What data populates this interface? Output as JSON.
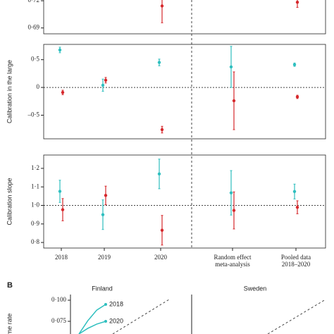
{
  "chart_data": [
    {
      "type": "errorbar",
      "categories": [
        "2018",
        "2019",
        "2020",
        "Random effect meta-analysis",
        "Pooled data 2018–2020"
      ],
      "ylim": [
        0.6835,
        0.7224
      ],
      "yticks": [
        {
          "value": 0.72,
          "label": "0·72"
        },
        {
          "value": 0.69,
          "label": "0·69"
        }
      ],
      "series": [
        {
          "color": "#d6282c",
          "values": [
            null,
            null,
            0.7143,
            null,
            0.7184
          ],
          "errors": [
            null,
            null,
            0.0186,
            null,
            0.0057
          ]
        }
      ]
    },
    {
      "type": "errorbar",
      "ylabel": "Calibration in the large",
      "ylim": [
        -0.925,
        0.775
      ],
      "refline": 0,
      "yticks": [
        {
          "value": 0.5,
          "label": "0·5"
        },
        0,
        {
          "value": -0.5,
          "label": "–0·5"
        }
      ],
      "series": [
        {
          "color": "#2fbfbf",
          "values": [
            0.675,
            0.04,
            0.45,
            0.37,
            0.41
          ],
          "errors": [
            0.05,
            0.11,
            0.06,
            0.37,
            0.03
          ]
        },
        {
          "color": "#d6282c",
          "values": [
            -0.09,
            0.13,
            -0.76,
            -0.24,
            -0.17
          ],
          "errors": [
            0.04,
            0.05,
            0.06,
            0.52,
            0.03
          ]
        }
      ]
    },
    {
      "type": "errorbar",
      "ylabel": "Calibration slope",
      "ylim": [
        0.77,
        1.272
      ],
      "refline": 1,
      "yticks": [
        {
          "value": 1.2,
          "label": "1·2"
        },
        {
          "value": 1.1,
          "label": "1·1"
        },
        {
          "value": 1.0,
          "label": "1·0"
        },
        {
          "value": 0.9,
          "label": "0·9"
        },
        {
          "value": 0.8,
          "label": "0·8"
        }
      ],
      "series": [
        {
          "color": "#2fbfbf",
          "values": [
            1.076,
            0.95,
            1.17,
            1.068,
            1.075
          ],
          "errors": [
            0.06,
            0.08,
            0.08,
            0.12,
            0.04
          ]
        },
        {
          "color": "#d6282c",
          "values": [
            0.977,
            1.054,
            0.866,
            0.973,
            0.99
          ],
          "errors": [
            0.06,
            0.05,
            0.08,
            0.1,
            0.035
          ]
        }
      ]
    },
    {
      "type": "line",
      "panel": "B",
      "ylabel": "me rate",
      "titles": [
        "Finland",
        "Sweden"
      ],
      "ylim": [
        0.06,
        0.1067
      ],
      "yticks": [
        {
          "value": 0.1,
          "label": "0·100"
        },
        {
          "value": 0.075,
          "label": "0·075"
        }
      ],
      "series": [
        {
          "name": "2018",
          "color": "#2fbfbf",
          "values": [
            0.06,
            0.0758,
            0.0883,
            0.095
          ]
        },
        {
          "name": "2020",
          "color": "#2fbfbf",
          "values": [
            0.06,
            0.0667,
            0.0717,
            0.075
          ]
        }
      ]
    }
  ]
}
